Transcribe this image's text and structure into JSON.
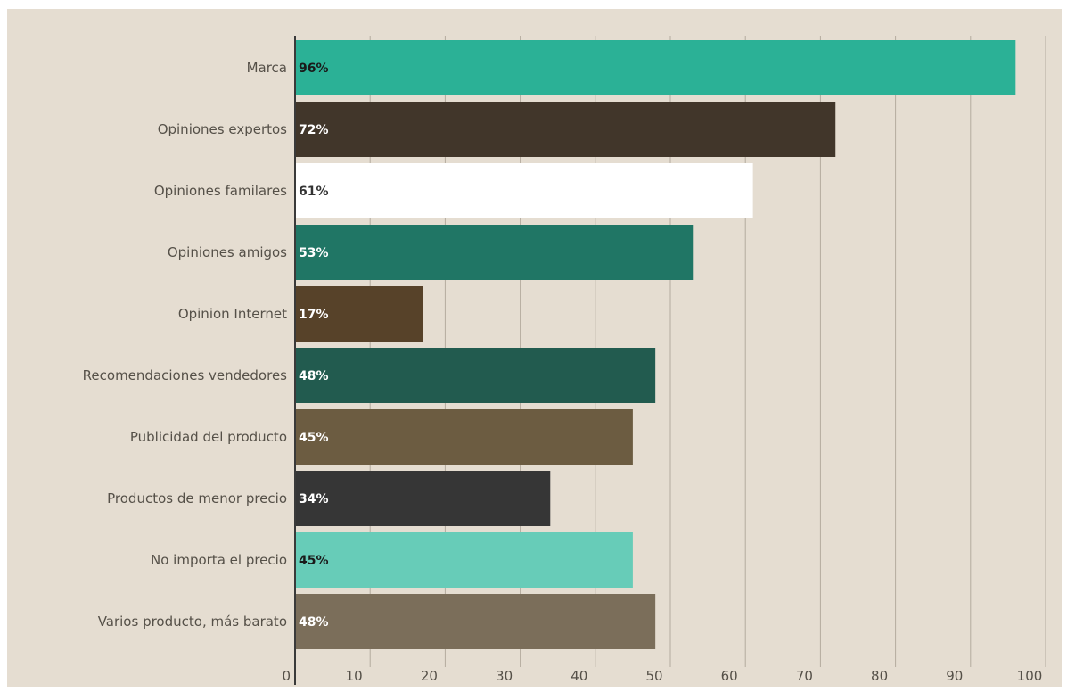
{
  "chart_data": {
    "type": "bar",
    "orientation": "horizontal",
    "categories": [
      "Marca",
      "Opiniones expertos",
      "Opiniones familares",
      "Opiniones amigos",
      "Opinion Internet",
      "Recomendaciones vendedores",
      "Publicidad del producto",
      "Productos de menor precio",
      "No importa el precio",
      "Varios producto, más barato"
    ],
    "values": [
      96,
      72,
      61,
      53,
      17,
      48,
      45,
      34,
      45,
      48
    ],
    "data_labels": [
      "96%",
      "72%",
      "61%",
      "53%",
      "17%",
      "48%",
      "45%",
      "34%",
      "45%",
      "48%"
    ],
    "bar_colors": [
      "#2bb196",
      "#41362a",
      "#ffffff",
      "#207665",
      "#574229",
      "#225b4f",
      "#6c5c41",
      "#363636",
      "#67ccb8",
      "#7b6e5a"
    ],
    "label_colors": [
      "#1a1a1a",
      "#ffffff",
      "#333333",
      "#ffffff",
      "#ffffff",
      "#ffffff",
      "#ffffff",
      "#ffffff",
      "#1a1a1a",
      "#ffffff"
    ],
    "xlim": [
      0,
      100
    ],
    "x_ticks": [
      0,
      10,
      20,
      30,
      40,
      50,
      60,
      70,
      80,
      90,
      100
    ],
    "grid": true,
    "title": "",
    "xlabel": "",
    "ylabel": ""
  }
}
